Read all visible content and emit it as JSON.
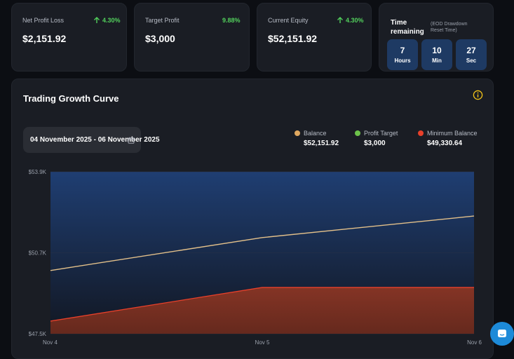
{
  "stats": [
    {
      "label": "Net Profit Loss",
      "value": "$2,151.92",
      "change": "4.30%",
      "arrow": true
    },
    {
      "label": "Target Profit",
      "value": "$3,000",
      "change": "9.88%",
      "arrow": false
    },
    {
      "label": "Current Equity",
      "value": "$52,151.92",
      "change": "4.30%",
      "arrow": true
    }
  ],
  "timer": {
    "title": "Time remaining",
    "note": "(EOD Drawdown Reset Time)",
    "units": [
      {
        "num": "7",
        "label": "Hours"
      },
      {
        "num": "10",
        "label": "Min"
      },
      {
        "num": "27",
        "label": "Sec"
      }
    ]
  },
  "chart_panel": {
    "title": "Trading Growth Curve",
    "date_range": "04 November 2025 - 06 November 2025"
  },
  "legend": [
    {
      "name": "Balance",
      "value": "$52,151.92",
      "color": "#e0a860"
    },
    {
      "name": "Profit Target",
      "value": "$3,000",
      "color": "#6cc24a"
    },
    {
      "name": "Minimum Balance",
      "value": "$49,330.64",
      "color": "#e8402a"
    }
  ],
  "chart_data": {
    "type": "area",
    "x": [
      "Nov 4",
      "Nov 5",
      "Nov 6"
    ],
    "y_ticks": [
      "$53.9K",
      "$50.7K",
      "$47.5K"
    ],
    "ylim": [
      47500,
      53900
    ],
    "series": [
      {
        "name": "Balance",
        "values": [
          50000,
          51300,
          52151.92
        ],
        "color": "#e3c08a"
      },
      {
        "name": "Minimum Balance",
        "values": [
          48000,
          49330.64,
          49330.64
        ],
        "color": "#e8402a"
      }
    ]
  },
  "colors": {
    "positive": "#52d05c",
    "accent_yellow": "#f5c518",
    "timer_box": "#1e3a63",
    "chat_button": "#1d8ad8"
  }
}
